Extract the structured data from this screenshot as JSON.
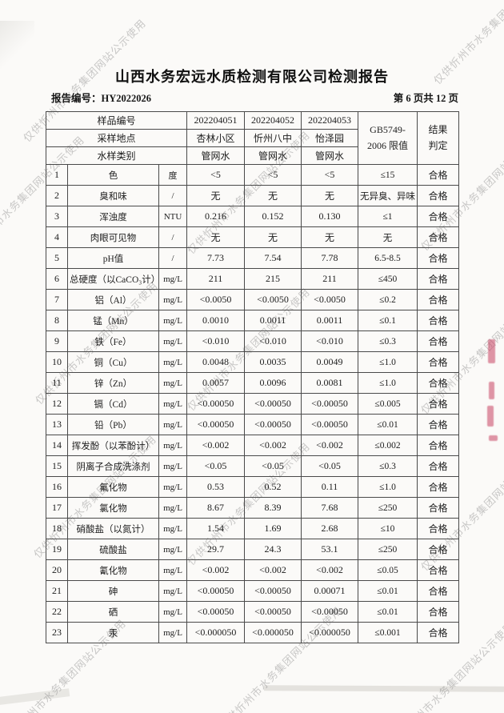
{
  "watermark": {
    "text": "仅供忻州市水务集团网站公示使用"
  },
  "header": {
    "title": "山西水务宏远水质检测有限公司检测报告",
    "report_no": "报告编号：HY2022026",
    "page_info": "第 6 页共 12 页"
  },
  "table": {
    "header": {
      "sample_no_label": "样品编号",
      "sample_ids": [
        "202204051",
        "202204052",
        "202204053"
      ],
      "location_label": "采样地点",
      "locations": [
        "杏林小区",
        "忻州八中",
        "怡泽园"
      ],
      "type_label": "水样类别",
      "types": [
        "管网水",
        "管网水",
        "管网水"
      ],
      "limit_line1": "GB5749-",
      "limit_line2": "2006 限值",
      "result_line1": "结果",
      "result_line2": "判定"
    },
    "rows": [
      {
        "num": "1",
        "name": "色",
        "unit": "度",
        "v1": "<5",
        "v2": "<5",
        "v3": "<5",
        "limit": "≤15",
        "result": "合格"
      },
      {
        "num": "2",
        "name": "臭和味",
        "unit": "/",
        "v1": "无",
        "v2": "无",
        "v3": "无",
        "limit": "无异臭、异味",
        "result": "合格"
      },
      {
        "num": "3",
        "name": "浑浊度",
        "unit": "NTU",
        "v1": "0.216",
        "v2": "0.152",
        "v3": "0.130",
        "limit": "≤1",
        "result": "合格"
      },
      {
        "num": "4",
        "name": "肉眼可见物",
        "unit": "/",
        "v1": "无",
        "v2": "无",
        "v3": "无",
        "limit": "无",
        "result": "合格"
      },
      {
        "num": "5",
        "name": "pH值",
        "unit": "/",
        "v1": "7.73",
        "v2": "7.54",
        "v3": "7.78",
        "limit": "6.5-8.5",
        "result": "合格"
      },
      {
        "num": "6",
        "name": "总硬度（以CaCO₃计）",
        "unit": "mg/L",
        "v1": "211",
        "v2": "215",
        "v3": "211",
        "limit": "≤450",
        "result": "合格"
      },
      {
        "num": "7",
        "name": "铝（Al）",
        "unit": "mg/L",
        "v1": "<0.0050",
        "v2": "<0.0050",
        "v3": "<0.0050",
        "limit": "≤0.2",
        "result": "合格"
      },
      {
        "num": "8",
        "name": "锰（Mn）",
        "unit": "mg/L",
        "v1": "0.0010",
        "v2": "0.0011",
        "v3": "0.0011",
        "limit": "≤0.1",
        "result": "合格"
      },
      {
        "num": "9",
        "name": "铁（Fe）",
        "unit": "mg/L",
        "v1": "<0.010",
        "v2": "<0.010",
        "v3": "<0.010",
        "limit": "≤0.3",
        "result": "合格"
      },
      {
        "num": "10",
        "name": "铜（Cu）",
        "unit": "mg/L",
        "v1": "0.0048",
        "v2": "0.0035",
        "v3": "0.0049",
        "limit": "≤1.0",
        "result": "合格"
      },
      {
        "num": "11",
        "name": "锌（Zn）",
        "unit": "mg/L",
        "v1": "0.0057",
        "v2": "0.0096",
        "v3": "0.0081",
        "limit": "≤1.0",
        "result": "合格"
      },
      {
        "num": "12",
        "name": "镉（Cd）",
        "unit": "mg/L",
        "v1": "<0.00050",
        "v2": "<0.00050",
        "v3": "<0.00050",
        "limit": "≤0.005",
        "result": "合格"
      },
      {
        "num": "13",
        "name": "铅（Pb）",
        "unit": "mg/L",
        "v1": "<0.00050",
        "v2": "<0.00050",
        "v3": "<0.00050",
        "limit": "≤0.01",
        "result": "合格"
      },
      {
        "num": "14",
        "name": "挥发酚（以苯酚计）",
        "unit": "mg/L",
        "v1": "<0.002",
        "v2": "<0.002",
        "v3": "<0.002",
        "limit": "≤0.002",
        "result": "合格"
      },
      {
        "num": "15",
        "name": "阴离子合成洗涤剂",
        "unit": "mg/L",
        "v1": "<0.05",
        "v2": "<0.05",
        "v3": "<0.05",
        "limit": "≤0.3",
        "result": "合格"
      },
      {
        "num": "16",
        "name": "氟化物",
        "unit": "mg/L",
        "v1": "0.53",
        "v2": "0.52",
        "v3": "0.11",
        "limit": "≤1.0",
        "result": "合格"
      },
      {
        "num": "17",
        "name": "氯化物",
        "unit": "mg/L",
        "v1": "8.67",
        "v2": "8.39",
        "v3": "7.68",
        "limit": "≤250",
        "result": "合格"
      },
      {
        "num": "18",
        "name": "硝酸盐（以氮计）",
        "unit": "mg/L",
        "v1": "1.54",
        "v2": "1.69",
        "v3": "2.68",
        "limit": "≤10",
        "result": "合格"
      },
      {
        "num": "19",
        "name": "硫酸盐",
        "unit": "mg/L",
        "v1": "29.7",
        "v2": "24.3",
        "v3": "53.1",
        "limit": "≤250",
        "result": "合格"
      },
      {
        "num": "20",
        "name": "氰化物",
        "unit": "mg/L",
        "v1": "<0.002",
        "v2": "<0.002",
        "v3": "<0.002",
        "limit": "≤0.05",
        "result": "合格"
      },
      {
        "num": "21",
        "name": "砷",
        "unit": "mg/L",
        "v1": "<0.00050",
        "v2": "<0.00050",
        "v3": "0.00071",
        "limit": "≤0.01",
        "result": "合格"
      },
      {
        "num": "22",
        "name": "硒",
        "unit": "mg/L",
        "v1": "<0.00050",
        "v2": "<0.00050",
        "v3": "<0.00050",
        "limit": "≤0.01",
        "result": "合格"
      },
      {
        "num": "23",
        "name": "汞",
        "unit": "mg/L",
        "v1": "<0.000050",
        "v2": "<0.000050",
        "v3": "<0.000050",
        "limit": "≤0.001",
        "result": "合格"
      }
    ]
  }
}
